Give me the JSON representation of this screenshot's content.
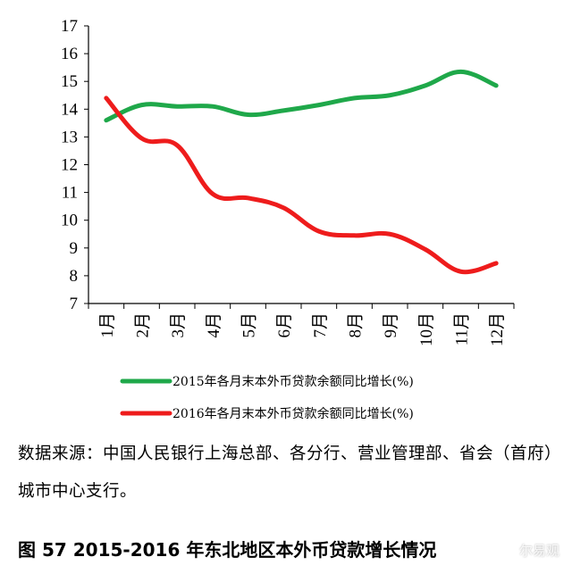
{
  "chart_data": {
    "type": "line",
    "categories": [
      "1月",
      "2月",
      "3月",
      "4月",
      "5月",
      "6月",
      "7月",
      "8月",
      "9月",
      "10月",
      "11月",
      "12月"
    ],
    "ylim": [
      7,
      17
    ],
    "yticks": [
      7,
      8,
      9,
      10,
      11,
      12,
      13,
      14,
      15,
      16,
      17
    ],
    "grid": false,
    "legend_placement": "bottom",
    "series": [
      {
        "name": "2015年各月末本外币贷款余额同比增长(%)",
        "color": "#1fa84a",
        "values": [
          13.6,
          14.15,
          14.1,
          14.1,
          13.8,
          13.95,
          14.15,
          14.4,
          14.5,
          14.85,
          15.35,
          14.85
        ]
      },
      {
        "name": "2016年各月末本外币贷款余额同比增长(%)",
        "color": "#ee1c1c",
        "values": [
          14.4,
          12.95,
          12.7,
          10.95,
          10.8,
          10.45,
          9.6,
          9.45,
          9.5,
          8.95,
          8.15,
          8.45
        ]
      }
    ]
  },
  "source_note": "数据来源：中国人民银行上海总部、各分行、营业管理部、省会（首府）城市中心支行。",
  "figure_caption": "图 57   2015-2016 年东北地区本外币贷款增长情况",
  "watermark": "尔易观"
}
